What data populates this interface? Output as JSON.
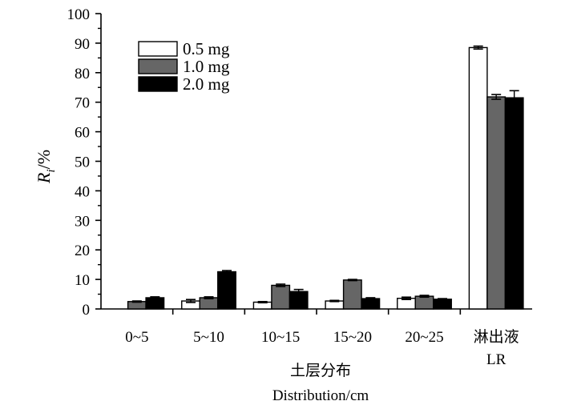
{
  "chart_data": {
    "type": "bar",
    "categories": [
      "0~5",
      "5~10",
      "10~15",
      "15~20",
      "20~25",
      "淋出液|LR"
    ],
    "series": [
      {
        "name": "0.5 mg",
        "color": "#ffffff",
        "values": [
          0,
          2.7,
          2.3,
          2.7,
          3.6,
          88.5
        ],
        "errors": [
          0,
          0.5,
          0.2,
          0.2,
          0.4,
          0.5
        ]
      },
      {
        "name": "1.0 mg",
        "color": "#666666",
        "values": [
          2.5,
          3.8,
          8.0,
          9.8,
          4.3,
          71.8
        ],
        "errors": [
          0.2,
          0.3,
          0.4,
          0.2,
          0.3,
          0.8
        ]
      },
      {
        "name": "2.0 mg",
        "color": "#000000",
        "values": [
          3.8,
          12.6,
          5.9,
          3.5,
          3.3,
          71.5
        ],
        "errors": [
          0.3,
          0.4,
          0.7,
          0.3,
          0.2,
          2.4
        ]
      }
    ],
    "ylim": [
      0,
      100
    ],
    "yticks": [
      0,
      10,
      20,
      30,
      40,
      50,
      60,
      70,
      80,
      90,
      100
    ],
    "ylabel_main": "R",
    "ylabel_sub": "i",
    "ylabel_unit": "/%",
    "xlabel_zh": "土层分布",
    "xlabel_en": "Distribution/cm",
    "legend_position": "top-left",
    "grid": false
  }
}
